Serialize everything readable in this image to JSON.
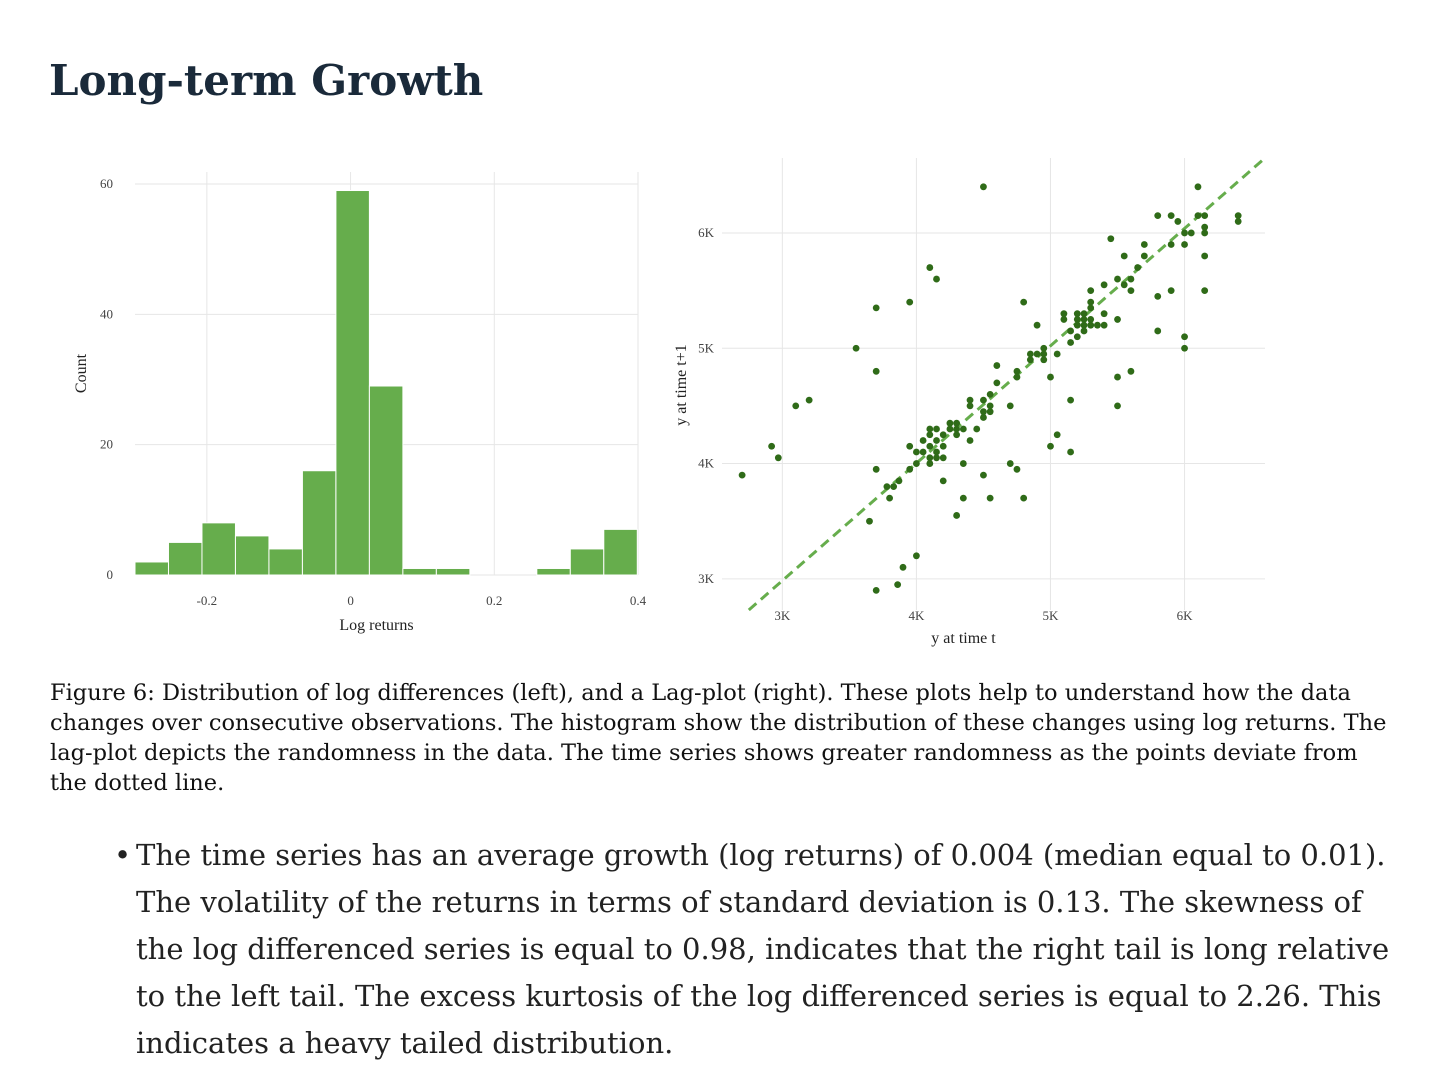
{
  "page": {
    "title": "Long-term Growth",
    "caption": "Figure 6: Distribution of log differences (left), and a Lag-plot (right). These plots help to understand how the data changes over consecutive observations. The histogram show the distribution of these changes using log returns. The lag-plot depicts the randomness in the data. The time series shows greater randomness as the points deviate from the dotted line.",
    "bullets": [
      "The time series has an average growth (log returns) of 0.004 (median equal to 0.01). The volatility of the returns in terms of standard deviation is 0.13. The skewness of the log differenced series is equal to 0.98, indicates that the right tail is long relative to the left tail. The excess kurtosis of the log differenced series is equal to 2.26. This indicates a heavy tailed distribution."
    ]
  },
  "colors": {
    "bar_fill": "#66ad4c",
    "point": "#2f6b18",
    "reference_line": "#66ad4c",
    "grid": "#e6e6e6"
  },
  "chart_data": [
    {
      "type": "bar",
      "subtype": "histogram",
      "xlabel": "Log returns",
      "ylabel": "Count",
      "xlim": [
        -0.3,
        0.4
      ],
      "ylim": [
        0,
        60
      ],
      "x_ticks": [
        -0.2,
        0,
        0.2,
        0.4
      ],
      "x_tick_labels": [
        "-0.2",
        "0",
        "0.2",
        "0.4"
      ],
      "y_ticks": [
        0,
        20,
        40,
        60
      ],
      "y_tick_labels": [
        "0",
        "20",
        "40",
        "60"
      ],
      "grid": true,
      "bins": [
        {
          "x0": -0.3,
          "x1": -0.2534,
          "count": 2
        },
        {
          "x0": -0.2534,
          "x1": -0.2068,
          "count": 5
        },
        {
          "x0": -0.2068,
          "x1": -0.1602,
          "count": 8
        },
        {
          "x0": -0.1602,
          "x1": -0.1136,
          "count": 6
        },
        {
          "x0": -0.1136,
          "x1": -0.067,
          "count": 4
        },
        {
          "x0": -0.067,
          "x1": -0.0204,
          "count": 16
        },
        {
          "x0": -0.0204,
          "x1": 0.0262,
          "count": 59
        },
        {
          "x0": 0.0262,
          "x1": 0.0728,
          "count": 29
        },
        {
          "x0": 0.0728,
          "x1": 0.1194,
          "count": 1
        },
        {
          "x0": 0.1194,
          "x1": 0.166,
          "count": 1
        },
        {
          "x0": 0.166,
          "x1": 0.2126,
          "count": 0
        },
        {
          "x0": 0.2126,
          "x1": 0.2592,
          "count": 0
        },
        {
          "x0": 0.2592,
          "x1": 0.3058,
          "count": 1
        },
        {
          "x0": 0.3058,
          "x1": 0.3524,
          "count": 4
        },
        {
          "x0": 0.3524,
          "x1": 0.399,
          "count": 7
        }
      ]
    },
    {
      "type": "scatter",
      "xlabel": "y at time t",
      "ylabel": "y at time t+1",
      "xlim": [
        2550,
        6600
      ],
      "ylim": [
        2730,
        6650
      ],
      "x_ticks": [
        3000,
        4000,
        5000,
        6000
      ],
      "x_tick_labels": [
        "3K",
        "4K",
        "5K",
        "6K"
      ],
      "y_ticks": [
        3000,
        4000,
        5000,
        6000
      ],
      "y_tick_labels": [
        "3K",
        "4K",
        "5K",
        "6K"
      ],
      "grid": true,
      "reference_line": {
        "style": "dashed",
        "from": [
          2750,
          2730
        ],
        "to": [
          6600,
          6650
        ]
      },
      "points": [
        [
          2700,
          3900
        ],
        [
          2920,
          4150
        ],
        [
          2970,
          4050
        ],
        [
          3100,
          4500
        ],
        [
          3200,
          4550
        ],
        [
          3550,
          5000
        ],
        [
          3700,
          5350
        ],
        [
          3700,
          4800
        ],
        [
          3700,
          3950
        ],
        [
          3700,
          2900
        ],
        [
          3780,
          3800
        ],
        [
          3800,
          3700
        ],
        [
          3830,
          3800
        ],
        [
          3860,
          2950
        ],
        [
          3870,
          3850
        ],
        [
          3900,
          3100
        ],
        [
          3950,
          3950
        ],
        [
          3950,
          5400
        ],
        [
          3950,
          4150
        ],
        [
          4000,
          3200
        ],
        [
          4000,
          4100
        ],
        [
          4050,
          4200
        ],
        [
          4050,
          4100
        ],
        [
          4100,
          4150
        ],
        [
          4100,
          4050
        ],
        [
          4100,
          4000
        ],
        [
          4100,
          4250
        ],
        [
          4100,
          4300
        ],
        [
          4100,
          5700
        ],
        [
          4150,
          4100
        ],
        [
          4150,
          4200
        ],
        [
          4150,
          4300
        ],
        [
          4150,
          5600
        ],
        [
          4150,
          4050
        ],
        [
          4200,
          4250
        ],
        [
          4200,
          3850
        ],
        [
          4200,
          4050
        ],
        [
          4250,
          4350
        ],
        [
          4250,
          4300
        ],
        [
          4300,
          3550
        ],
        [
          4300,
          4350
        ],
        [
          4300,
          4250
        ],
        [
          4350,
          4000
        ],
        [
          4350,
          3700
        ],
        [
          4350,
          4300
        ],
        [
          4400,
          4200
        ],
        [
          4400,
          4500
        ],
        [
          4400,
          4550
        ],
        [
          4450,
          4300
        ],
        [
          4500,
          6400
        ],
        [
          4500,
          4550
        ],
        [
          4500,
          4450
        ],
        [
          4500,
          3900
        ],
        [
          4550,
          4600
        ],
        [
          4550,
          4500
        ],
        [
          4550,
          4450
        ],
        [
          4550,
          3700
        ],
        [
          4600,
          4700
        ],
        [
          4600,
          4850
        ],
        [
          4700,
          4500
        ],
        [
          4700,
          4000
        ],
        [
          4750,
          4800
        ],
        [
          4750,
          3950
        ],
        [
          4750,
          4750
        ],
        [
          4800,
          5400
        ],
        [
          4800,
          3700
        ],
        [
          4850,
          4950
        ],
        [
          4850,
          4900
        ],
        [
          4900,
          5200
        ],
        [
          4900,
          4950
        ],
        [
          4950,
          5000
        ],
        [
          4950,
          4900
        ],
        [
          5000,
          4750
        ],
        [
          5000,
          4150
        ],
        [
          5050,
          4950
        ],
        [
          5050,
          4250
        ],
        [
          5100,
          5300
        ],
        [
          5100,
          5250
        ],
        [
          5150,
          5150
        ],
        [
          5150,
          4100
        ],
        [
          5150,
          4550
        ],
        [
          5200,
          5300
        ],
        [
          5200,
          5200
        ],
        [
          5200,
          5100
        ],
        [
          5200,
          5250
        ],
        [
          5250,
          5150
        ],
        [
          5250,
          5200
        ],
        [
          5250,
          5300
        ],
        [
          5250,
          5250
        ],
        [
          5300,
          5500
        ],
        [
          5300,
          5400
        ],
        [
          5300,
          5350
        ],
        [
          5300,
          5250
        ],
        [
          5300,
          5200
        ],
        [
          5350,
          5200
        ],
        [
          5400,
          5550
        ],
        [
          5400,
          5200
        ],
        [
          5400,
          5300
        ],
        [
          5450,
          5950
        ],
        [
          5500,
          5600
        ],
        [
          5500,
          5250
        ],
        [
          5500,
          4750
        ],
        [
          5500,
          4500
        ],
        [
          5550,
          5800
        ],
        [
          5550,
          5550
        ],
        [
          5600,
          5500
        ],
        [
          5600,
          4800
        ],
        [
          5650,
          5700
        ],
        [
          5700,
          5900
        ],
        [
          5700,
          5800
        ],
        [
          5800,
          5450
        ],
        [
          5800,
          5150
        ],
        [
          5800,
          6150
        ],
        [
          5900,
          5500
        ],
        [
          5900,
          6150
        ],
        [
          5950,
          6100
        ],
        [
          6000,
          6000
        ],
        [
          6000,
          5100
        ],
        [
          6000,
          5000
        ],
        [
          6000,
          5900
        ],
        [
          6050,
          6000
        ],
        [
          6100,
          6400
        ],
        [
          6100,
          6150
        ],
        [
          6150,
          6150
        ],
        [
          6150,
          6050
        ],
        [
          6150,
          6000
        ],
        [
          6150,
          5800
        ],
        [
          6150,
          5500
        ],
        [
          6400,
          6150
        ],
        [
          6400,
          6100
        ],
        [
          4500,
          4400
        ],
        [
          4300,
          4300
        ],
        [
          4200,
          4150
        ],
        [
          5150,
          5050
        ],
        [
          5600,
          5600
        ],
        [
          5900,
          5900
        ],
        [
          4950,
          4950
        ],
        [
          4000,
          4000
        ],
        [
          3650,
          3500
        ]
      ]
    }
  ]
}
